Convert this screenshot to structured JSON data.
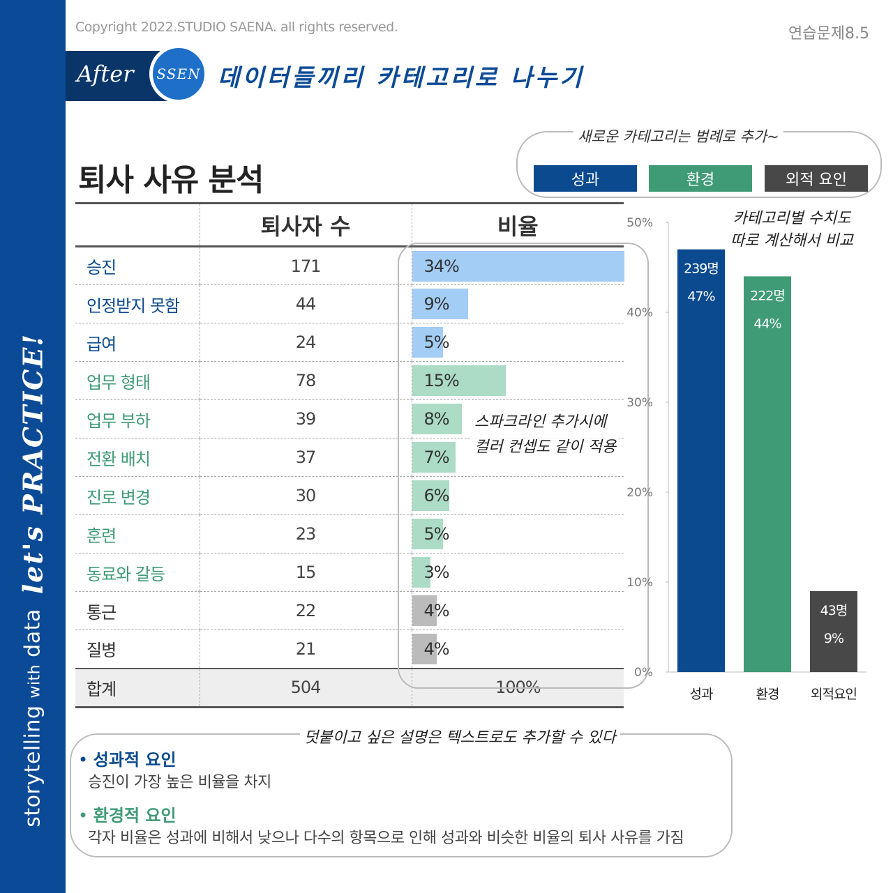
{
  "header": {
    "copyright": "Copyright 2022.STUDIO SAENA. all rights reserved.",
    "exercise": "연습문제8.5",
    "after_label": "After",
    "ssen_label": "SSEN",
    "subtitle": "데이터들끼리 카테고리로 나누기"
  },
  "sidebar": {
    "brand_main": "storytelling ",
    "brand_with": "with",
    "brand_data": " data",
    "lets_practice": "let's PRACTICE!"
  },
  "title": "퇴사 사유 분석",
  "legend": {
    "note": "새로운 카테고리는 범례로 추가~",
    "items": [
      {
        "label": "성과",
        "color": "#0b4a8e"
      },
      {
        "label": "환경",
        "color": "#3f9a76"
      },
      {
        "label": "외적 요인",
        "color": "#484848"
      }
    ]
  },
  "table": {
    "headers": [
      "",
      "퇴사자 수",
      "비율"
    ],
    "rows": [
      {
        "name": "승진",
        "count": "171",
        "pct_label": "34%",
        "pct": 34,
        "category": "성과"
      },
      {
        "name": "인정받지 못함",
        "count": "44",
        "pct_label": "9%",
        "pct": 9,
        "category": "성과"
      },
      {
        "name": "급여",
        "count": "24",
        "pct_label": "5%",
        "pct": 5,
        "category": "성과"
      },
      {
        "name": "업무 형태",
        "count": "78",
        "pct_label": "15%",
        "pct": 15,
        "category": "환경"
      },
      {
        "name": "업무 부하",
        "count": "39",
        "pct_label": "8%",
        "pct": 8,
        "category": "환경"
      },
      {
        "name": "전환 배치",
        "count": "37",
        "pct_label": "7%",
        "pct": 7,
        "category": "환경"
      },
      {
        "name": "진로 변경",
        "count": "30",
        "pct_label": "6%",
        "pct": 6,
        "category": "환경"
      },
      {
        "name": "훈련",
        "count": "23",
        "pct_label": "5%",
        "pct": 5,
        "category": "환경"
      },
      {
        "name": "동료와 갈등",
        "count": "15",
        "pct_label": "3%",
        "pct": 3,
        "category": "환경"
      },
      {
        "name": "통근",
        "count": "22",
        "pct_label": "4%",
        "pct": 4,
        "category": "외적 요인"
      },
      {
        "name": "질병",
        "count": "21",
        "pct_label": "4%",
        "pct": 4,
        "category": "외적 요인"
      }
    ],
    "total": {
      "name": "합계",
      "count": "504",
      "pct_label": "100%"
    }
  },
  "category_colors": {
    "성과": {
      "text": "#0b4a8e",
      "bar": "#a3cdf5"
    },
    "환경": {
      "text": "#3f9a76",
      "bar": "#acdbc6"
    },
    "외적 요인": {
      "text": "#333333",
      "bar": "#bbbbbb"
    }
  },
  "sparkline_note": [
    "스파크라인 추가시에",
    "컬러 컨셉도 같이 적용"
  ],
  "category_note": [
    "카테고리별 수치도",
    "따로 계산해서 비교"
  ],
  "chart_data": {
    "type": "bar",
    "title": "",
    "categories": [
      "성과",
      "환경",
      "외적요인"
    ],
    "values": [
      47,
      44,
      9
    ],
    "count_labels": [
      "239명",
      "222명",
      "43명"
    ],
    "value_labels": [
      "47%",
      "44%",
      "9%"
    ],
    "colors": [
      "#0b4a8e",
      "#3f9a76",
      "#484848"
    ],
    "ylim": [
      0,
      50
    ],
    "yticks": [
      0,
      10,
      20,
      30,
      40,
      50
    ],
    "ytick_labels": [
      "0%",
      "10%",
      "20%",
      "30%",
      "40%",
      "50%"
    ],
    "xlabel": "",
    "ylabel": ""
  },
  "bottom": {
    "note": "덧붙이고 싶은 설명은 텍스트로도 추가할 수 있다",
    "items": [
      {
        "bullet": "•",
        "heading": "성과적 요인",
        "text": "승진이 가장 높은 비율을 차지",
        "color": "#0b4a8e"
      },
      {
        "bullet": "•",
        "heading": "환경적 요인",
        "text": "각자 비율은 성과에 비해서 낮으나 다수의 항목으로 인해 성과와 비슷한 비율의 퇴사 사유를 가짐",
        "color": "#3f9a76"
      }
    ]
  }
}
